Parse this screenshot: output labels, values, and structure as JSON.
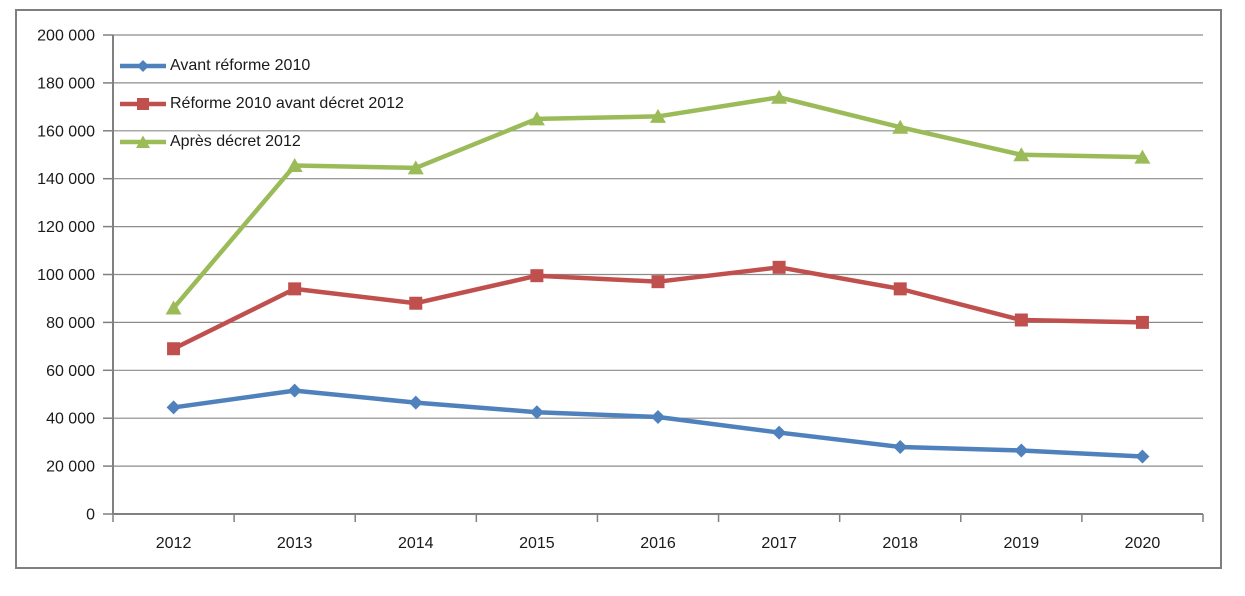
{
  "chart_data": {
    "type": "line",
    "title": "",
    "xlabel": "",
    "ylabel": "",
    "categories": [
      "2012",
      "2013",
      "2014",
      "2015",
      "2016",
      "2017",
      "2018",
      "2019",
      "2020"
    ],
    "series": [
      {
        "name": "Avant réforme 2010",
        "color": "#4F81BD",
        "marker": "diamond",
        "values": [
          44500,
          51500,
          46500,
          42500,
          40500,
          34000,
          28000,
          26500,
          24000
        ]
      },
      {
        "name": "Réforme 2010 avant décret 2012",
        "color": "#C0504D",
        "marker": "square",
        "values": [
          69000,
          94000,
          88000,
          99500,
          97000,
          103000,
          94000,
          81000,
          80000
        ]
      },
      {
        "name": "Après décret 2012",
        "color": "#9BBB59",
        "marker": "triangle",
        "values": [
          86000,
          145500,
          144500,
          165000,
          166000,
          174000,
          161500,
          150000,
          149000
        ]
      }
    ],
    "ylim": [
      0,
      200000
    ],
    "ytick_step": 20000,
    "ytick_labels": [
      "0",
      "20 000",
      "40 000",
      "60 000",
      "80 000",
      "100 000",
      "120 000",
      "140 000",
      "160 000",
      "180 000",
      "200 000"
    ],
    "grid": true,
    "legend_position": "inside-top-left",
    "colors": {
      "axis": "#808080",
      "gridline": "#8C8C8C",
      "frame": "#7F7F7F",
      "tick_text": "#1a1a1a"
    }
  }
}
